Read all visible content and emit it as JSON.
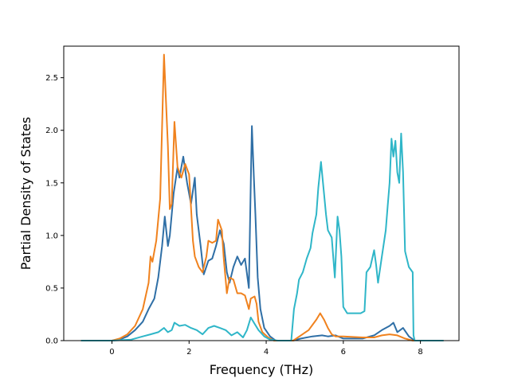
{
  "chart_data": {
    "type": "line",
    "title": "",
    "xlabel": "Frequency (THz)",
    "ylabel": "Partial Density of States",
    "xlim": [
      -1.25,
      9.0
    ],
    "ylim": [
      0.0,
      2.8
    ],
    "xticks": [
      0,
      2,
      4,
      6,
      8
    ],
    "xtick_labels": [
      "0",
      "2",
      "4",
      "6",
      "8"
    ],
    "yticks": [
      0.0,
      0.5,
      1.0,
      1.5,
      2.0,
      2.5
    ],
    "ytick_labels": [
      "0.0",
      "0.5",
      "1.0",
      "1.5",
      "2.0",
      "2.5"
    ],
    "grid": false,
    "legend": "none",
    "series": [
      {
        "color": "#2f6fa6",
        "points": [
          [
            -0.8,
            0
          ],
          [
            0,
            0
          ],
          [
            0.2,
            0.01
          ],
          [
            0.4,
            0.04
          ],
          [
            0.6,
            0.1
          ],
          [
            0.8,
            0.18
          ],
          [
            0.95,
            0.3
          ],
          [
            1.1,
            0.4
          ],
          [
            1.2,
            0.6
          ],
          [
            1.3,
            0.9
          ],
          [
            1.37,
            1.18
          ],
          [
            1.45,
            0.9
          ],
          [
            1.5,
            1.0
          ],
          [
            1.6,
            1.4
          ],
          [
            1.7,
            1.65
          ],
          [
            1.75,
            1.55
          ],
          [
            1.85,
            1.75
          ],
          [
            1.95,
            1.5
          ],
          [
            2.05,
            1.3
          ],
          [
            2.15,
            1.55
          ],
          [
            2.2,
            1.2
          ],
          [
            2.3,
            0.9
          ],
          [
            2.38,
            0.63
          ],
          [
            2.5,
            0.76
          ],
          [
            2.6,
            0.78
          ],
          [
            2.7,
            0.9
          ],
          [
            2.8,
            1.05
          ],
          [
            2.9,
            0.92
          ],
          [
            2.98,
            0.65
          ],
          [
            3.05,
            0.55
          ],
          [
            3.15,
            0.7
          ],
          [
            3.25,
            0.8
          ],
          [
            3.35,
            0.72
          ],
          [
            3.45,
            0.78
          ],
          [
            3.55,
            0.5
          ],
          [
            3.6,
            1.5
          ],
          [
            3.63,
            2.04
          ],
          [
            3.68,
            1.55
          ],
          [
            3.72,
            1.2
          ],
          [
            3.78,
            0.6
          ],
          [
            3.85,
            0.3
          ],
          [
            3.95,
            0.12
          ],
          [
            4.1,
            0.04
          ],
          [
            4.25,
            0
          ],
          [
            4.7,
            0
          ],
          [
            4.9,
            0.02
          ],
          [
            5.2,
            0.04
          ],
          [
            5.45,
            0.05
          ],
          [
            5.6,
            0.04
          ],
          [
            5.8,
            0.05
          ],
          [
            6.0,
            0.02
          ],
          [
            6.5,
            0.02
          ],
          [
            6.8,
            0.05
          ],
          [
            7.0,
            0.1
          ],
          [
            7.2,
            0.14
          ],
          [
            7.3,
            0.17
          ],
          [
            7.4,
            0.08
          ],
          [
            7.55,
            0.12
          ],
          [
            7.7,
            0.04
          ],
          [
            7.85,
            0
          ],
          [
            8.6,
            0
          ]
        ]
      },
      {
        "color": "#f0821e",
        "points": [
          [
            -0.8,
            0
          ],
          [
            0,
            0
          ],
          [
            0.2,
            0.02
          ],
          [
            0.4,
            0.06
          ],
          [
            0.6,
            0.14
          ],
          [
            0.8,
            0.3
          ],
          [
            0.95,
            0.55
          ],
          [
            1.0,
            0.8
          ],
          [
            1.05,
            0.75
          ],
          [
            1.15,
            0.95
          ],
          [
            1.25,
            1.35
          ],
          [
            1.35,
            2.72
          ],
          [
            1.45,
            1.85
          ],
          [
            1.5,
            1.25
          ],
          [
            1.55,
            1.3
          ],
          [
            1.62,
            2.08
          ],
          [
            1.7,
            1.65
          ],
          [
            1.8,
            1.55
          ],
          [
            1.9,
            1.68
          ],
          [
            2.0,
            1.58
          ],
          [
            2.1,
            0.95
          ],
          [
            2.15,
            0.8
          ],
          [
            2.25,
            0.7
          ],
          [
            2.35,
            0.65
          ],
          [
            2.45,
            0.8
          ],
          [
            2.5,
            0.95
          ],
          [
            2.6,
            0.93
          ],
          [
            2.7,
            0.95
          ],
          [
            2.75,
            1.15
          ],
          [
            2.85,
            1.05
          ],
          [
            2.9,
            0.78
          ],
          [
            2.98,
            0.45
          ],
          [
            3.05,
            0.6
          ],
          [
            3.15,
            0.58
          ],
          [
            3.25,
            0.45
          ],
          [
            3.35,
            0.45
          ],
          [
            3.45,
            0.43
          ],
          [
            3.55,
            0.3
          ],
          [
            3.6,
            0.4
          ],
          [
            3.7,
            0.42
          ],
          [
            3.75,
            0.35
          ],
          [
            3.8,
            0.18
          ],
          [
            3.9,
            0.08
          ],
          [
            4.05,
            0.03
          ],
          [
            4.2,
            0
          ],
          [
            4.7,
            0
          ],
          [
            4.9,
            0.05
          ],
          [
            5.1,
            0.1
          ],
          [
            5.3,
            0.2
          ],
          [
            5.4,
            0.26
          ],
          [
            5.5,
            0.2
          ],
          [
            5.6,
            0.12
          ],
          [
            5.7,
            0.06
          ],
          [
            5.8,
            0.04
          ],
          [
            6.0,
            0.04
          ],
          [
            6.5,
            0.03
          ],
          [
            6.8,
            0.03
          ],
          [
            7.0,
            0.05
          ],
          [
            7.2,
            0.06
          ],
          [
            7.4,
            0.05
          ],
          [
            7.6,
            0.02
          ],
          [
            7.8,
            0
          ],
          [
            8.6,
            0
          ]
        ]
      },
      {
        "color": "#2fb6c8",
        "points": [
          [
            -0.8,
            0
          ],
          [
            0,
            0
          ],
          [
            0.5,
            0.01
          ],
          [
            0.8,
            0.04
          ],
          [
            1.0,
            0.06
          ],
          [
            1.2,
            0.08
          ],
          [
            1.35,
            0.12
          ],
          [
            1.45,
            0.08
          ],
          [
            1.55,
            0.1
          ],
          [
            1.62,
            0.17
          ],
          [
            1.75,
            0.14
          ],
          [
            1.9,
            0.15
          ],
          [
            2.05,
            0.12
          ],
          [
            2.2,
            0.1
          ],
          [
            2.35,
            0.06
          ],
          [
            2.5,
            0.12
          ],
          [
            2.65,
            0.14
          ],
          [
            2.8,
            0.12
          ],
          [
            2.95,
            0.1
          ],
          [
            3.1,
            0.05
          ],
          [
            3.25,
            0.08
          ],
          [
            3.4,
            0.03
          ],
          [
            3.5,
            0.1
          ],
          [
            3.6,
            0.22
          ],
          [
            3.7,
            0.16
          ],
          [
            3.8,
            0.1
          ],
          [
            3.95,
            0.04
          ],
          [
            4.1,
            0.01
          ],
          [
            4.3,
            0
          ],
          [
            4.65,
            0
          ],
          [
            4.72,
            0.3
          ],
          [
            4.8,
            0.45
          ],
          [
            4.85,
            0.58
          ],
          [
            4.95,
            0.65
          ],
          [
            5.05,
            0.78
          ],
          [
            5.15,
            0.88
          ],
          [
            5.2,
            1.02
          ],
          [
            5.3,
            1.2
          ],
          [
            5.35,
            1.45
          ],
          [
            5.42,
            1.7
          ],
          [
            5.5,
            1.4
          ],
          [
            5.55,
            1.2
          ],
          [
            5.6,
            1.05
          ],
          [
            5.7,
            0.98
          ],
          [
            5.78,
            0.6
          ],
          [
            5.85,
            1.18
          ],
          [
            5.9,
            1.05
          ],
          [
            5.95,
            0.8
          ],
          [
            6.0,
            0.32
          ],
          [
            6.1,
            0.26
          ],
          [
            6.3,
            0.26
          ],
          [
            6.45,
            0.26
          ],
          [
            6.55,
            0.28
          ],
          [
            6.6,
            0.65
          ],
          [
            6.7,
            0.7
          ],
          [
            6.8,
            0.86
          ],
          [
            6.85,
            0.72
          ],
          [
            6.9,
            0.55
          ],
          [
            7.0,
            0.8
          ],
          [
            7.1,
            1.05
          ],
          [
            7.15,
            1.28
          ],
          [
            7.2,
            1.5
          ],
          [
            7.25,
            1.92
          ],
          [
            7.3,
            1.75
          ],
          [
            7.35,
            1.9
          ],
          [
            7.4,
            1.6
          ],
          [
            7.45,
            1.5
          ],
          [
            7.5,
            1.97
          ],
          [
            7.55,
            1.6
          ],
          [
            7.6,
            0.85
          ],
          [
            7.7,
            0.7
          ],
          [
            7.8,
            0.65
          ],
          [
            7.82,
            0.05
          ],
          [
            7.85,
            0
          ],
          [
            8.6,
            0
          ]
        ]
      }
    ]
  }
}
